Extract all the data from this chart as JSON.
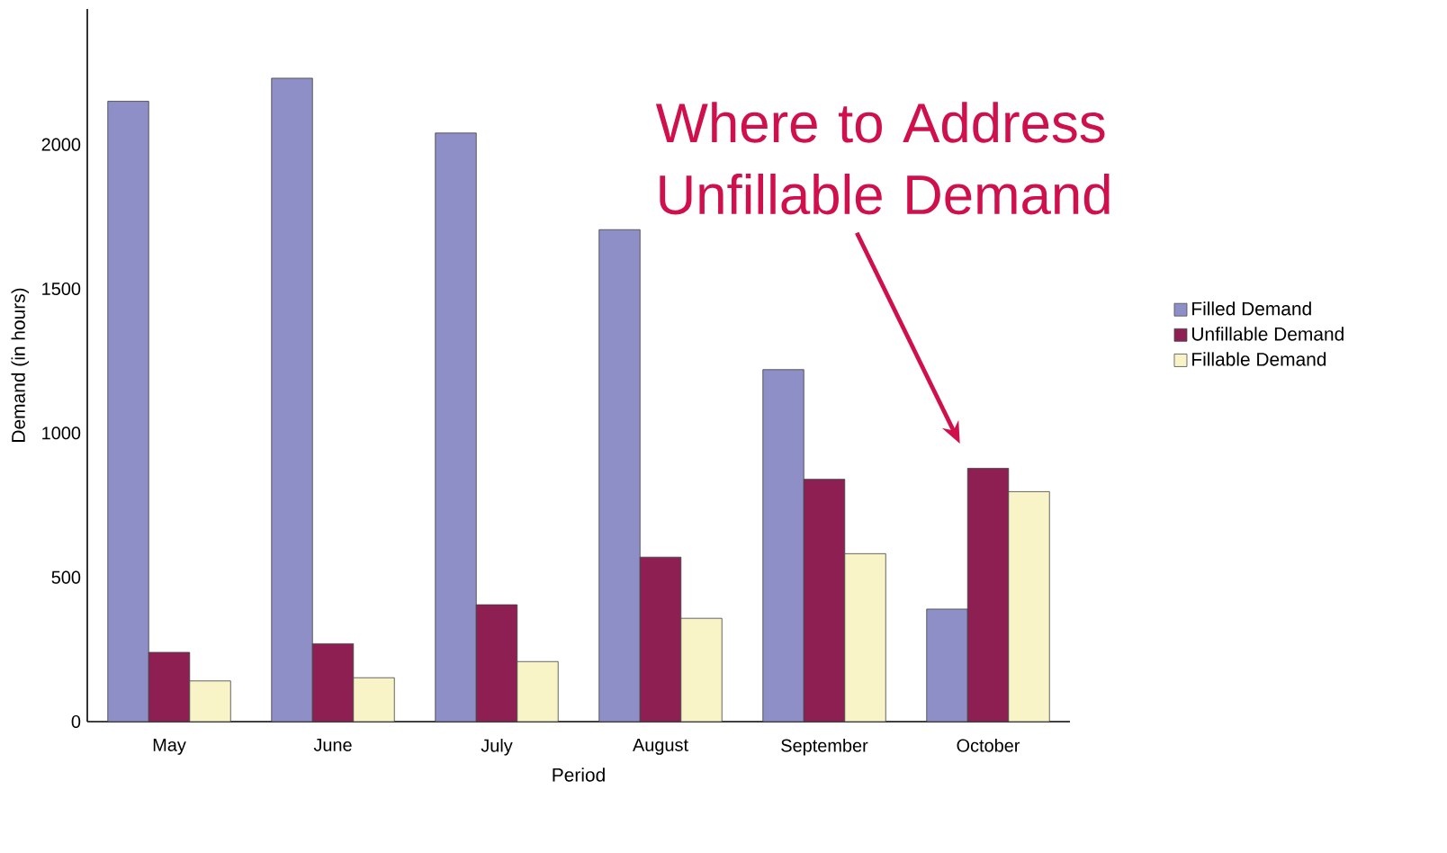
{
  "chart_data": {
    "type": "bar",
    "xlabel": "Period",
    "ylabel": "Demand (in hours)",
    "categories": [
      "May",
      "June",
      "July",
      "August",
      "September",
      "October"
    ],
    "series": [
      {
        "name": "Filled Demand",
        "color": "#8f8fc8",
        "values": [
          2150,
          2230,
          2040,
          1705,
          1220,
          390
        ]
      },
      {
        "name": "Unfillable Demand",
        "color": "#8e1f52",
        "values": [
          240,
          270,
          405,
          570,
          840,
          878
        ]
      },
      {
        "name": "Fillable Demand",
        "color": "#f8f4c8",
        "values": [
          141,
          152,
          208,
          358,
          582,
          797
        ]
      }
    ],
    "ylim": [
      0,
      2470
    ],
    "yticks": [
      0,
      500,
      1000,
      1500,
      2000
    ],
    "grid": false,
    "legend": "right",
    "annotations": [
      "Where to Address Unfillable Demand"
    ]
  }
}
